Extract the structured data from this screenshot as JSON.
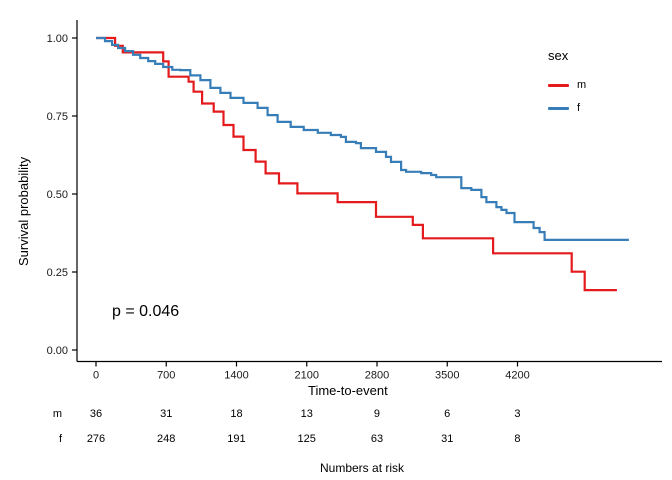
{
  "figure": {
    "y_axis": {
      "title": "Survival probability",
      "tick_labels": [
        "1.00",
        "0.75",
        "0.50",
        "0.25",
        "0.00"
      ],
      "tick_values": [
        1.0,
        0.75,
        0.5,
        0.25,
        0.0
      ]
    },
    "x_axis": {
      "title": "Time-to-event",
      "tick_labels": [
        "0",
        "700",
        "1400",
        "2100",
        "2800",
        "3500",
        "4200"
      ],
      "tick_values": [
        0,
        700,
        1400,
        2100,
        2800,
        3500,
        4200
      ]
    },
    "legend": {
      "title": "sex",
      "items": [
        {
          "label": "m",
          "color": "#E41A1C"
        },
        {
          "label": "f",
          "color": "#377EB8"
        }
      ]
    },
    "annotation": {
      "p_value": "p = 0.046"
    }
  },
  "risk_table": {
    "caption": "Numbers at risk",
    "rows": [
      {
        "label": "m",
        "values": [
          "36",
          "31",
          "18",
          "13",
          "9",
          "6",
          "3"
        ]
      },
      {
        "label": "f",
        "values": [
          "276",
          "248",
          "191",
          "125",
          "63",
          "31",
          "8"
        ]
      }
    ]
  },
  "chart_data": {
    "type": "line",
    "subtype": "kaplan-meier-step",
    "title": "",
    "xlabel": "Time-to-event",
    "ylabel": "Survival probability",
    "xlim": [
      -190,
      5640
    ],
    "ylim": [
      0,
      1.0
    ],
    "x_ticks": [
      0,
      700,
      1400,
      2100,
      2800,
      3500,
      4200
    ],
    "y_ticks": [
      0,
      0.25,
      0.5,
      0.75,
      1.0
    ],
    "grid": false,
    "legend_position": "right",
    "p_value_annotation": "p = 0.046",
    "series": [
      {
        "name": "m",
        "color": "#E41A1C",
        "end_t": 5190,
        "points": [
          [
            0,
            1.0
          ],
          [
            190,
            0.975
          ],
          [
            267,
            0.954
          ],
          [
            670,
            0.925
          ],
          [
            723,
            0.876
          ],
          [
            923,
            0.86
          ],
          [
            973,
            0.828
          ],
          [
            1057,
            0.79
          ],
          [
            1173,
            0.764
          ],
          [
            1270,
            0.721
          ],
          [
            1370,
            0.684
          ],
          [
            1470,
            0.641
          ],
          [
            1590,
            0.604
          ],
          [
            1690,
            0.566
          ],
          [
            1823,
            0.534
          ],
          [
            2007,
            0.502
          ],
          [
            2407,
            0.474
          ],
          [
            2790,
            0.427
          ],
          [
            3157,
            0.401
          ],
          [
            3257,
            0.358
          ],
          [
            3957,
            0.31
          ],
          [
            4740,
            0.251
          ],
          [
            4870,
            0.192
          ]
        ]
      },
      {
        "name": "f",
        "color": "#377EB8",
        "end_t": 5310,
        "points": [
          [
            0,
            1.0
          ],
          [
            90,
            0.99
          ],
          [
            160,
            0.978
          ],
          [
            220,
            0.968
          ],
          [
            290,
            0.958
          ],
          [
            370,
            0.946
          ],
          [
            440,
            0.936
          ],
          [
            520,
            0.926
          ],
          [
            590,
            0.917
          ],
          [
            670,
            0.907
          ],
          [
            760,
            0.898
          ],
          [
            840,
            0.897
          ],
          [
            940,
            0.88
          ],
          [
            1040,
            0.865
          ],
          [
            1140,
            0.84
          ],
          [
            1240,
            0.824
          ],
          [
            1340,
            0.808
          ],
          [
            1470,
            0.792
          ],
          [
            1610,
            0.776
          ],
          [
            1710,
            0.753
          ],
          [
            1810,
            0.731
          ],
          [
            1940,
            0.715
          ],
          [
            2070,
            0.705
          ],
          [
            2210,
            0.696
          ],
          [
            2340,
            0.689
          ],
          [
            2440,
            0.683
          ],
          [
            2490,
            0.667
          ],
          [
            2590,
            0.663
          ],
          [
            2640,
            0.647
          ],
          [
            2790,
            0.635
          ],
          [
            2890,
            0.619
          ],
          [
            2940,
            0.603
          ],
          [
            3040,
            0.577
          ],
          [
            3090,
            0.571
          ],
          [
            3240,
            0.567
          ],
          [
            3340,
            0.561
          ],
          [
            3390,
            0.554
          ],
          [
            3640,
            0.519
          ],
          [
            3740,
            0.513
          ],
          [
            3840,
            0.49
          ],
          [
            3890,
            0.474
          ],
          [
            3990,
            0.458
          ],
          [
            4040,
            0.449
          ],
          [
            4090,
            0.439
          ],
          [
            4170,
            0.41
          ],
          [
            4360,
            0.391
          ],
          [
            4420,
            0.378
          ],
          [
            4470,
            0.353
          ]
        ]
      }
    ],
    "numbers_at_risk": {
      "times": [
        0,
        700,
        1400,
        2100,
        2800,
        3500,
        4200
      ],
      "m": [
        36,
        31,
        18,
        13,
        9,
        6,
        3
      ],
      "f": [
        276,
        248,
        191,
        125,
        63,
        31,
        8
      ]
    }
  }
}
